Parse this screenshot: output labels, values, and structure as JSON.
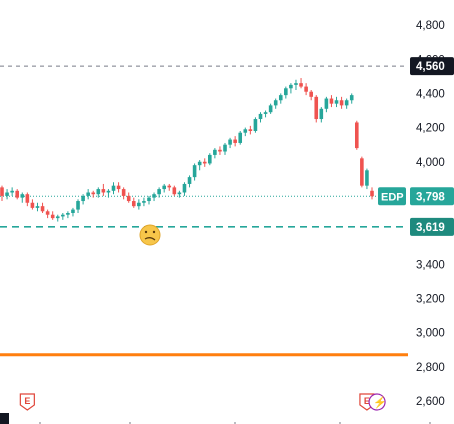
{
  "chart_data": {
    "type": "candlestick",
    "symbol": "EDP",
    "last_price": "3,798",
    "y_axis": {
      "range": [
        2500,
        4900
      ],
      "ticks": [
        "4,800",
        "4,600",
        "4,400",
        "4,200",
        "4,000",
        "3,800",
        "3,600",
        "3,400",
        "3,200",
        "3,000",
        "2,800",
        "2,600"
      ]
    },
    "grid": false,
    "levels": [
      {
        "name": "upper-dashed-level",
        "value": 4560,
        "label": "4,560",
        "style": "dashed",
        "color": "#787b86"
      },
      {
        "name": "lower-dashed-level",
        "value": 3619,
        "label": "3,619",
        "style": "dashed",
        "color": "#26a69a"
      },
      {
        "name": "orange-level",
        "value": 2870,
        "label": "",
        "style": "solid",
        "color": "#ff7f0e"
      },
      {
        "name": "last-price-level",
        "value": 3798,
        "label": "3,798",
        "style": "dotted",
        "color": "#26a69a"
      }
    ],
    "candles": [
      [
        3850,
        3860,
        3770,
        3800
      ],
      [
        3800,
        3840,
        3780,
        3820
      ],
      [
        3820,
        3850,
        3800,
        3830
      ],
      [
        3830,
        3840,
        3780,
        3790
      ],
      [
        3790,
        3820,
        3760,
        3810
      ],
      [
        3810,
        3820,
        3740,
        3760
      ],
      [
        3760,
        3780,
        3720,
        3730
      ],
      [
        3730,
        3760,
        3710,
        3740
      ],
      [
        3740,
        3760,
        3700,
        3710
      ],
      [
        3710,
        3720,
        3670,
        3690
      ],
      [
        3690,
        3710,
        3660,
        3670
      ],
      [
        3670,
        3690,
        3650,
        3680
      ],
      [
        3680,
        3700,
        3660,
        3690
      ],
      [
        3690,
        3710,
        3670,
        3700
      ],
      [
        3700,
        3730,
        3680,
        3720
      ],
      [
        3720,
        3780,
        3700,
        3770
      ],
      [
        3770,
        3810,
        3750,
        3800
      ],
      [
        3800,
        3840,
        3780,
        3820
      ],
      [
        3820,
        3830,
        3790,
        3810
      ],
      [
        3810,
        3850,
        3790,
        3840
      ],
      [
        3840,
        3870,
        3800,
        3820
      ],
      [
        3820,
        3840,
        3790,
        3830
      ],
      [
        3830,
        3880,
        3810,
        3860
      ],
      [
        3860,
        3880,
        3820,
        3840
      ],
      [
        3840,
        3850,
        3780,
        3800
      ],
      [
        3800,
        3820,
        3760,
        3770
      ],
      [
        3770,
        3790,
        3730,
        3740
      ],
      [
        3740,
        3780,
        3720,
        3760
      ],
      [
        3760,
        3790,
        3740,
        3770
      ],
      [
        3770,
        3800,
        3750,
        3790
      ],
      [
        3790,
        3820,
        3770,
        3810
      ],
      [
        3810,
        3850,
        3790,
        3840
      ],
      [
        3840,
        3870,
        3820,
        3860
      ],
      [
        3860,
        3870,
        3830,
        3850
      ],
      [
        3850,
        3860,
        3800,
        3810
      ],
      [
        3810,
        3830,
        3790,
        3820
      ],
      [
        3820,
        3880,
        3800,
        3870
      ],
      [
        3870,
        3920,
        3850,
        3910
      ],
      [
        3910,
        3990,
        3890,
        3980
      ],
      [
        3980,
        4010,
        3950,
        4000
      ],
      [
        4000,
        4020,
        3970,
        3990
      ],
      [
        3990,
        4050,
        3980,
        4040
      ],
      [
        4040,
        4080,
        4020,
        4070
      ],
      [
        4070,
        4090,
        4040,
        4060
      ],
      [
        4060,
        4110,
        4040,
        4100
      ],
      [
        4100,
        4140,
        4080,
        4130
      ],
      [
        4130,
        4150,
        4090,
        4110
      ],
      [
        4110,
        4180,
        4100,
        4170
      ],
      [
        4170,
        4200,
        4150,
        4190
      ],
      [
        4190,
        4210,
        4160,
        4180
      ],
      [
        4180,
        4260,
        4170,
        4250
      ],
      [
        4250,
        4290,
        4230,
        4280
      ],
      [
        4280,
        4300,
        4260,
        4290
      ],
      [
        4290,
        4340,
        4280,
        4330
      ],
      [
        4330,
        4370,
        4310,
        4360
      ],
      [
        4360,
        4400,
        4340,
        4390
      ],
      [
        4390,
        4440,
        4370,
        4430
      ],
      [
        4430,
        4460,
        4400,
        4450
      ],
      [
        4450,
        4480,
        4420,
        4460
      ],
      [
        4460,
        4490,
        4430,
        4440
      ],
      [
        4440,
        4460,
        4390,
        4410
      ],
      [
        4410,
        4420,
        4360,
        4380
      ],
      [
        4380,
        4390,
        4230,
        4250
      ],
      [
        4250,
        4320,
        4230,
        4310
      ],
      [
        4310,
        4380,
        4290,
        4370
      ],
      [
        4370,
        4390,
        4320,
        4340
      ],
      [
        4340,
        4380,
        4320,
        4360
      ],
      [
        4360,
        4380,
        4310,
        4330
      ],
      [
        4330,
        4370,
        4310,
        4360
      ],
      [
        4360,
        4400,
        4340,
        4390
      ],
      [
        4230,
        4240,
        4070,
        4080
      ],
      [
        4020,
        4030,
        3850,
        3860
      ],
      [
        3860,
        3960,
        3840,
        3950
      ],
      [
        3830,
        3850,
        3780,
        3798
      ]
    ],
    "events": [
      {
        "name": "earnings-marker-left",
        "label": "E",
        "index": 5
      },
      {
        "name": "earnings-marker-right",
        "label": "E",
        "index": 72
      },
      {
        "name": "lightning-marker",
        "label": "⚡",
        "index": 74
      }
    ]
  }
}
